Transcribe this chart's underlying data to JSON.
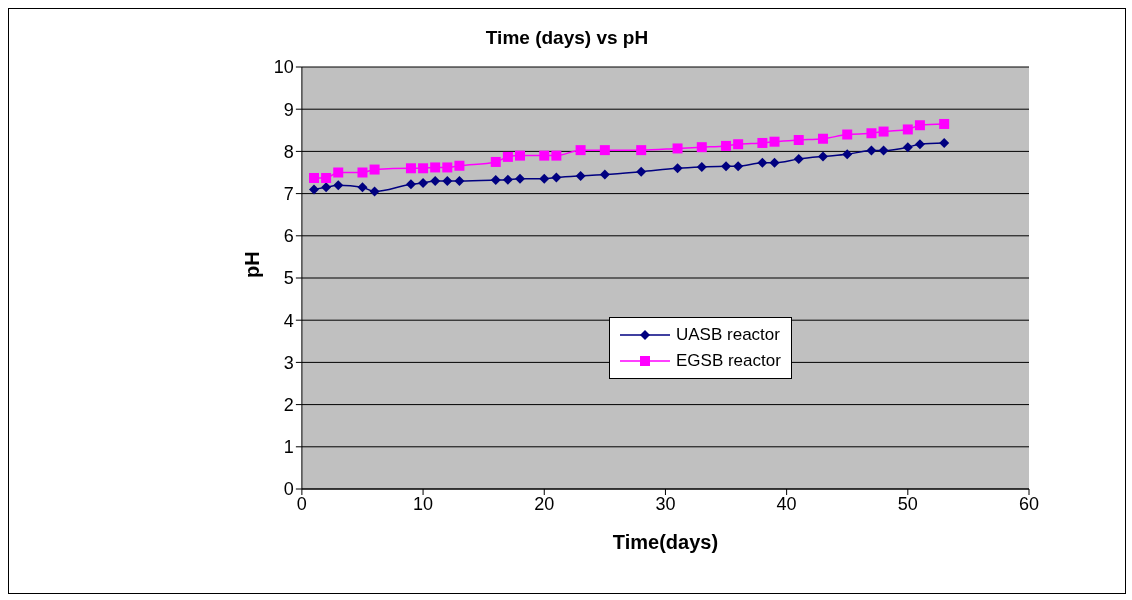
{
  "chart_data": {
    "type": "line",
    "title": "Time (days) vs pH",
    "xlabel": "Time(days)",
    "ylabel": "pH",
    "x": [
      1,
      2,
      3,
      5,
      6,
      9,
      10,
      11,
      12,
      13,
      16,
      17,
      18,
      20,
      21,
      23,
      25,
      28,
      31,
      33,
      35,
      36,
      38,
      39,
      41,
      43,
      45,
      47,
      48,
      50,
      51,
      53
    ],
    "series": [
      {
        "name": "UASB reactor",
        "color": "#000080",
        "marker": "diamond",
        "values": [
          7.1,
          7.15,
          7.2,
          7.15,
          7.05,
          7.22,
          7.25,
          7.3,
          7.3,
          7.3,
          7.32,
          7.33,
          7.35,
          7.35,
          7.38,
          7.42,
          7.45,
          7.52,
          7.6,
          7.63,
          7.65,
          7.65,
          7.73,
          7.73,
          7.82,
          7.88,
          7.93,
          8.02,
          8.02,
          8.1,
          8.17,
          8.2
        ]
      },
      {
        "name": "EGSB reactor",
        "color": "#ff00ff",
        "marker": "square",
        "values": [
          7.37,
          7.37,
          7.5,
          7.5,
          7.57,
          7.6,
          7.6,
          7.62,
          7.62,
          7.66,
          7.75,
          7.87,
          7.9,
          7.9,
          7.9,
          8.03,
          8.03,
          8.03,
          8.07,
          8.1,
          8.13,
          8.17,
          8.2,
          8.23,
          8.27,
          8.3,
          8.4,
          8.43,
          8.47,
          8.52,
          8.62,
          8.65
        ]
      }
    ],
    "xlim": [
      0,
      60
    ],
    "xticks": [
      0,
      10,
      20,
      30,
      40,
      50,
      60
    ],
    "ylim": [
      0,
      10
    ],
    "yticks": [
      0,
      1,
      2,
      3,
      4,
      5,
      6,
      7,
      8,
      9,
      10
    ],
    "grid": "y",
    "legend": "right",
    "line_style": "solid"
  }
}
